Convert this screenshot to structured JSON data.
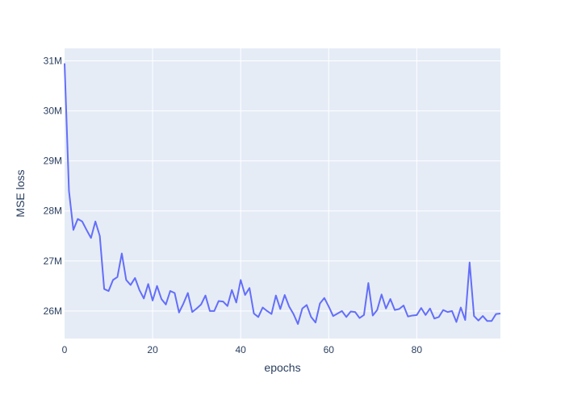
{
  "chart_data": {
    "type": "line",
    "title": "",
    "xlabel": "epochs",
    "ylabel": "MSE loss",
    "xlim": [
      0,
      99
    ],
    "ylim": [
      25450000,
      31250000
    ],
    "x_ticks": [
      0,
      20,
      40,
      60,
      80
    ],
    "x_tick_labels": [
      "0",
      "20",
      "40",
      "60",
      "80"
    ],
    "y_ticks": [
      26000000,
      27000000,
      28000000,
      29000000,
      30000000,
      31000000
    ],
    "y_tick_labels": [
      "26M",
      "27M",
      "28M",
      "29M",
      "30M",
      "31M"
    ],
    "grid": true,
    "legend": "none",
    "colors": {
      "line": "#636efa",
      "plot_bg": "#e5ecf6",
      "grid": "#ffffff",
      "text": "#2a3f5f"
    },
    "series": [
      {
        "x": [
          0,
          1,
          2,
          3,
          4,
          5,
          6,
          7,
          8,
          9,
          10,
          11,
          12,
          13,
          14,
          15,
          16,
          17,
          18,
          19,
          20,
          21,
          22,
          23,
          24,
          25,
          26,
          27,
          28,
          29,
          30,
          31,
          32,
          33,
          34,
          35,
          36,
          37,
          38,
          39,
          40,
          41,
          42,
          43,
          44,
          45,
          46,
          47,
          48,
          49,
          50,
          51,
          52,
          53,
          54,
          55,
          56,
          57,
          58,
          59,
          60,
          61,
          62,
          63,
          64,
          65,
          66,
          67,
          68,
          69,
          70,
          71,
          72,
          73,
          74,
          75,
          76,
          77,
          78,
          79,
          80,
          81,
          82,
          83,
          84,
          85,
          86,
          87,
          88,
          89,
          90,
          91,
          92,
          93,
          94,
          95,
          96,
          97,
          98,
          99
        ],
        "values": [
          30950000,
          28400000,
          27620000,
          27840000,
          27790000,
          27620000,
          27460000,
          27790000,
          27500000,
          26440000,
          26400000,
          26620000,
          26680000,
          27150000,
          26620000,
          26520000,
          26660000,
          26420000,
          26250000,
          26540000,
          26210000,
          26500000,
          26240000,
          26130000,
          26400000,
          26360000,
          25970000,
          26150000,
          26360000,
          25980000,
          26050000,
          26130000,
          26310000,
          26000000,
          26000000,
          26200000,
          26190000,
          26100000,
          26420000,
          26170000,
          26620000,
          26320000,
          26460000,
          25950000,
          25880000,
          26070000,
          26000000,
          25940000,
          26310000,
          26040000,
          26320000,
          26090000,
          25940000,
          25740000,
          26050000,
          26120000,
          25880000,
          25770000,
          26150000,
          26260000,
          26090000,
          25900000,
          25950000,
          26000000,
          25880000,
          25990000,
          25980000,
          25860000,
          25920000,
          26560000,
          25910000,
          26020000,
          26330000,
          26050000,
          26240000,
          26020000,
          26040000,
          26110000,
          25890000,
          25910000,
          25920000,
          26060000,
          25920000,
          26050000,
          25850000,
          25880000,
          26020000,
          25980000,
          26000000,
          25780000,
          26070000,
          25820000,
          26970000,
          25900000,
          25810000,
          25900000,
          25800000,
          25800000,
          25940000,
          25950000
        ]
      }
    ]
  }
}
